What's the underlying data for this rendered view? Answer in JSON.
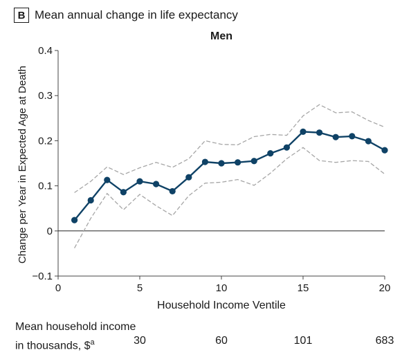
{
  "panel": {
    "letter": "B",
    "title": "Mean annual change in life expectancy"
  },
  "chart_data": {
    "type": "line",
    "title": "Men",
    "xlabel": "Household Income Ventile",
    "ylabel": "Change per Year in Expected Age at Death",
    "xlim": [
      0,
      20
    ],
    "ylim": [
      -0.1,
      0.4
    ],
    "xticks": [
      0,
      5,
      10,
      15,
      20
    ],
    "yticks": [
      -0.1,
      0,
      0.1,
      0.2,
      0.3,
      0.4
    ],
    "ytick_labels": [
      "−0.1",
      "0",
      "0.1",
      "0.2",
      "0.3",
      "0.4"
    ],
    "zero_line": true,
    "x": [
      1,
      2,
      3,
      4,
      5,
      6,
      7,
      8,
      9,
      10,
      11,
      12,
      13,
      14,
      15,
      16,
      17,
      18,
      19,
      20
    ],
    "series": [
      {
        "name": "Estimate",
        "style": "solid-markers",
        "color": "#0f4266",
        "values": [
          0.024,
          0.068,
          0.113,
          0.086,
          0.11,
          0.104,
          0.088,
          0.119,
          0.153,
          0.15,
          0.152,
          0.155,
          0.172,
          0.185,
          0.22,
          0.218,
          0.208,
          0.21,
          0.199,
          0.179
        ]
      },
      {
        "name": "Upper 95% CI",
        "style": "dashed",
        "color": "#a6a6a6",
        "values": [
          0.085,
          0.11,
          0.142,
          0.125,
          0.14,
          0.152,
          0.141,
          0.16,
          0.2,
          0.192,
          0.191,
          0.209,
          0.214,
          0.212,
          0.255,
          0.28,
          0.262,
          0.264,
          0.245,
          0.23
        ]
      },
      {
        "name": "Lower 95% CI",
        "style": "dashed",
        "color": "#a6a6a6",
        "values": [
          -0.038,
          0.028,
          0.083,
          0.047,
          0.081,
          0.056,
          0.034,
          0.078,
          0.106,
          0.108,
          0.114,
          0.101,
          0.128,
          0.16,
          0.185,
          0.156,
          0.152,
          0.156,
          0.154,
          0.126
        ]
      }
    ]
  },
  "income": {
    "label_line1": "Mean household income",
    "label_line2_text": "in thousands, $",
    "label_line2_sup": "a",
    "values": [
      {
        "ventile": 5,
        "text": "30"
      },
      {
        "ventile": 10,
        "text": "60"
      },
      {
        "ventile": 15,
        "text": "101"
      },
      {
        "ventile": 20,
        "text": "683"
      }
    ]
  }
}
